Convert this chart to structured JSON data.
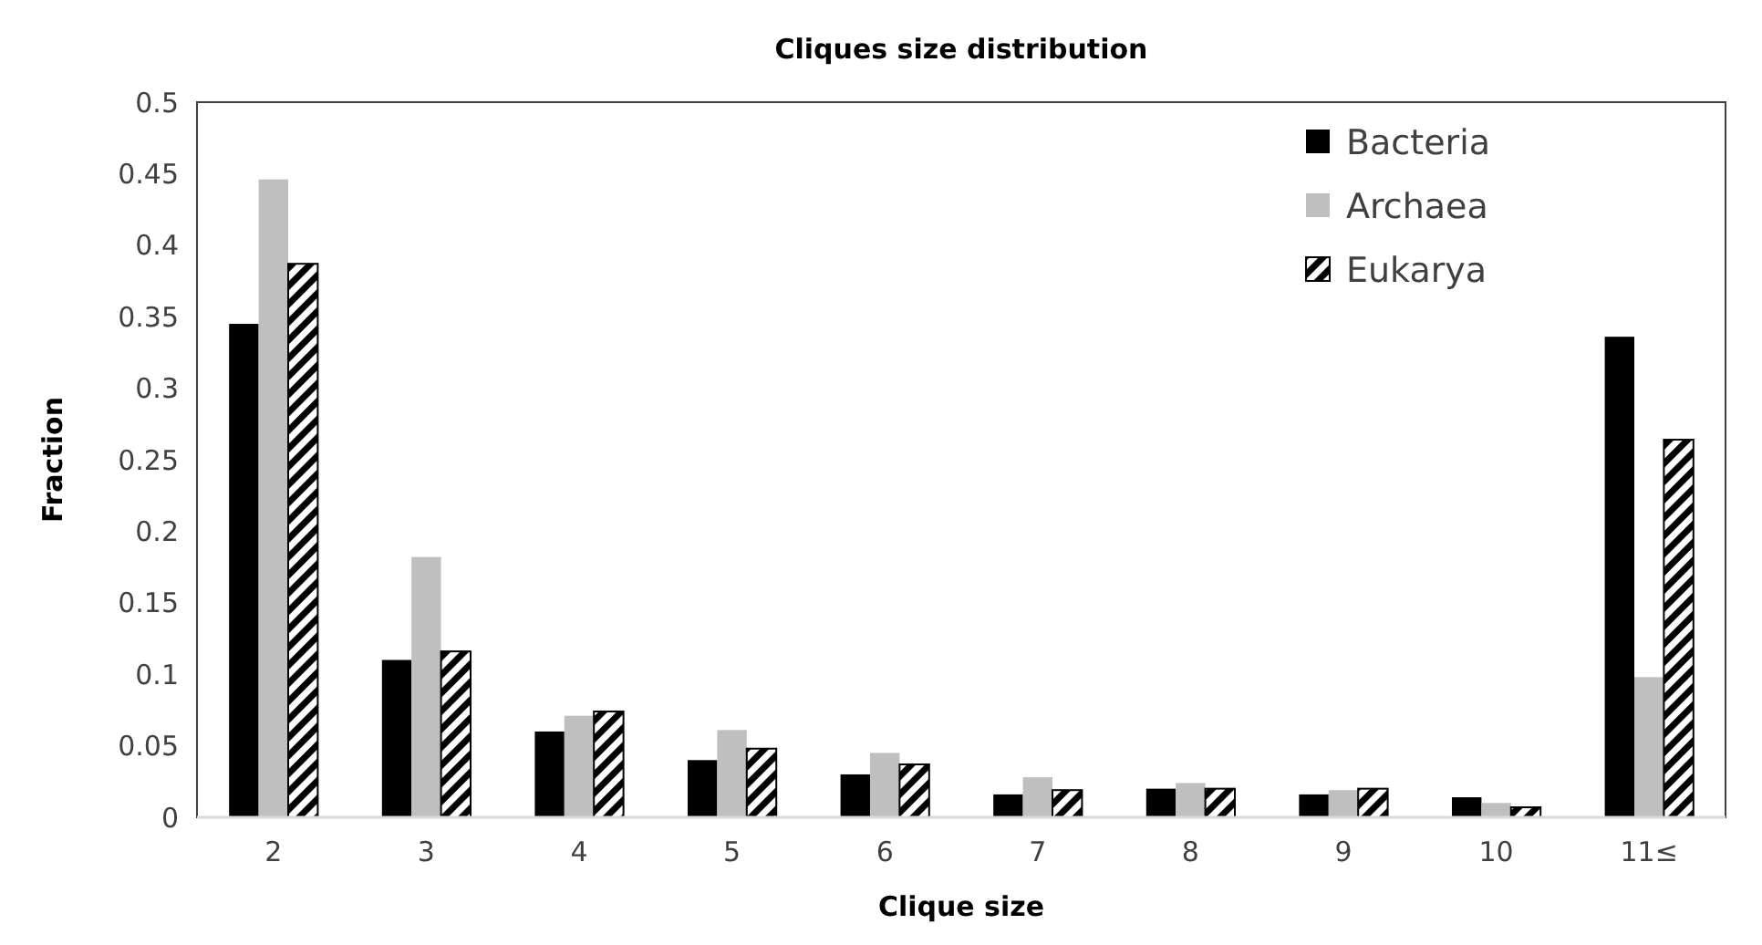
{
  "chart_data": {
    "type": "bar",
    "title": "Cliques size distribution",
    "xlabel": "Clique size",
    "ylabel": "Fraction",
    "categories": [
      "2",
      "3",
      "4",
      "5",
      "6",
      "7",
      "8",
      "9",
      "10",
      "11≤"
    ],
    "series": [
      {
        "name": "Bacteria",
        "color": "#000000",
        "values": [
          0.345,
          0.11,
          0.06,
          0.04,
          0.03,
          0.016,
          0.02,
          0.016,
          0.014,
          0.336
        ]
      },
      {
        "name": "Archaea",
        "color": "#bfbfbf",
        "values": [
          0.446,
          0.182,
          0.071,
          0.061,
          0.045,
          0.028,
          0.024,
          0.019,
          0.01,
          0.098
        ]
      },
      {
        "name": "Eukarya",
        "color": "#000000",
        "values": [
          0.387,
          0.116,
          0.074,
          0.048,
          0.037,
          0.019,
          0.02,
          0.02,
          0.007,
          0.264
        ]
      }
    ],
    "ylim": [
      0,
      0.5
    ],
    "yticks": [
      0,
      0.05,
      0.1,
      0.15,
      0.2,
      0.25,
      0.3,
      0.35,
      0.4,
      0.45,
      0.5
    ],
    "grid": false,
    "legend": "top right"
  }
}
